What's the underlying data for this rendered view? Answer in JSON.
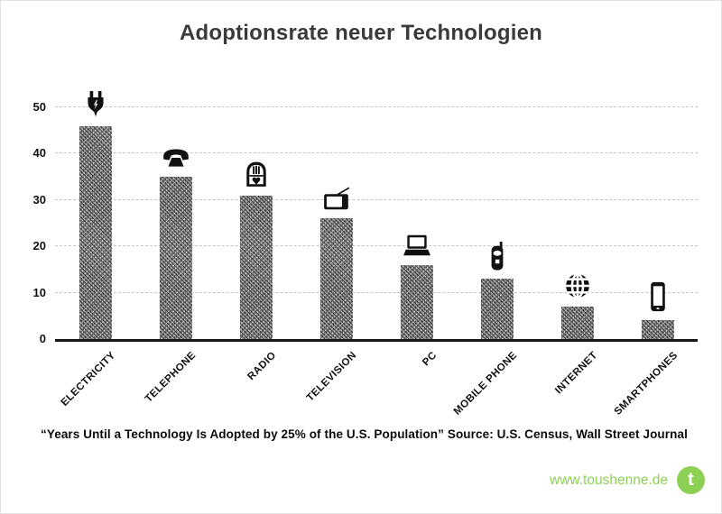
{
  "chart_data": {
    "type": "bar",
    "title": "Adoptionsrate neuer Technologien",
    "categories": [
      "ELECTRICITY",
      "TELEPHONE",
      "RADIO",
      "TELEVISION",
      "PC",
      "MOBILE PHONE",
      "INTERNET",
      "SMARTPHONES"
    ],
    "values": [
      46,
      35,
      31,
      26,
      16,
      13,
      7,
      4
    ],
    "yticks": [
      0,
      10,
      20,
      30,
      40,
      50
    ],
    "ylim": [
      0,
      50
    ],
    "xlabel": "",
    "ylabel": "",
    "grid": "horizontal-dashed",
    "legend": "none",
    "bar_texture_color": "#8f8f8f",
    "icon_color": "#111111",
    "icons": [
      "power-plug",
      "rotary-telephone",
      "tube-radio",
      "crt-tv",
      "laptop",
      "flip-phone",
      "globe",
      "smartphone"
    ]
  },
  "caption": {
    "text": "“Years Until a Technology Is Adopted by 25% of the U.S. Population” Source: U.S. Census, Wall Street Journal"
  },
  "footer": {
    "website": "www.toushenne.de",
    "logo_letter": "t",
    "accent_color": "#8dd154"
  }
}
